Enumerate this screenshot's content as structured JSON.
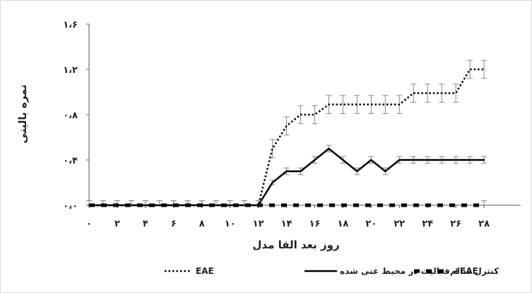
{
  "chart_data": {
    "type": "line",
    "title": "",
    "xlabel": "روز بعد القا مدل",
    "ylabel": "نمره بالینی",
    "xlim": [
      0,
      30.6
    ],
    "ylim": [
      0,
      1.6
    ],
    "x_ticks": [
      0,
      2,
      4,
      6,
      8,
      10,
      12,
      14,
      16,
      18,
      20,
      22,
      24,
      26,
      28
    ],
    "x_tick_labels": [
      "۰",
      "۲",
      "۴",
      "۶",
      "۸",
      "۱۰",
      "۱۲",
      "۱۴",
      "۱۶",
      "۱۸",
      "۲۰",
      "۲۲",
      "۲۴",
      "۲۶",
      "۲۸"
    ],
    "y_ticks": [
      0,
      0.4,
      0.8,
      1.2,
      1.6
    ],
    "y_tick_labels": [
      "۰،۰",
      "۰،۴",
      "۰،۸",
      "۱،۲",
      "۱،۶"
    ],
    "legend_position": "bottom",
    "x": [
      0,
      1,
      2,
      3,
      4,
      5,
      6,
      7,
      8,
      9,
      10,
      11,
      12,
      13,
      14,
      15,
      16,
      17,
      18,
      19,
      20,
      21,
      22,
      23,
      24,
      25,
      26,
      27,
      28
    ],
    "series": [
      {
        "name": "EAE",
        "style": "dotted",
        "color": "#000000",
        "values": [
          0,
          0,
          0,
          0,
          0,
          0,
          0,
          0,
          0,
          0,
          0,
          0,
          0,
          0.5,
          0.7,
          0.8,
          0.8,
          0.89,
          0.89,
          0.89,
          0.89,
          0.89,
          0.89,
          0.99,
          0.99,
          0.99,
          0.99,
          1.2,
          1.2
        ],
        "errors": [
          0.04,
          0.04,
          0.04,
          0.04,
          0.04,
          0.04,
          0.04,
          0.04,
          0.04,
          0.04,
          0.04,
          0.04,
          0.04,
          0.08,
          0.08,
          0.08,
          0.08,
          0.08,
          0.08,
          0.08,
          0.08,
          0.08,
          0.08,
          0.08,
          0.08,
          0.08,
          0.08,
          0.08,
          0.08
        ]
      },
      {
        "name": "فعالیت در محیط غنی شده +EAE",
        "style": "solid",
        "color": "#000000",
        "values": [
          0,
          0,
          0,
          0,
          0,
          0,
          0,
          0,
          0,
          0,
          0,
          0,
          0,
          0.2,
          0.3,
          0.3,
          0.4,
          0.5,
          0.4,
          0.3,
          0.4,
          0.3,
          0.4,
          0.4,
          0.4,
          0.4,
          0.4,
          0.4,
          0.4
        ],
        "errors": [
          0,
          0,
          0,
          0,
          0,
          0,
          0,
          0,
          0,
          0,
          0,
          0,
          0,
          0.02,
          0.03,
          0.03,
          0.03,
          0.03,
          0.03,
          0.03,
          0.03,
          0.03,
          0.03,
          0.03,
          0.03,
          0.03,
          0.03,
          0.03,
          0.03
        ]
      },
      {
        "name": "کنترل سالم",
        "style": "dashed",
        "color": "#000000",
        "values": [
          0,
          0,
          0,
          0,
          0,
          0,
          0,
          0,
          0,
          0,
          0,
          0,
          0,
          0,
          0,
          0,
          0,
          0,
          0,
          0,
          0,
          0,
          0,
          0,
          0,
          0,
          0,
          0,
          0
        ],
        "errors": [
          0.04,
          0.04,
          0.04,
          0.04,
          0.04,
          0.04,
          0.04,
          0.04,
          0.04,
          0.04,
          0.04,
          0.04,
          0.04,
          0,
          0,
          0,
          0,
          0,
          0,
          0,
          0,
          0,
          0,
          0,
          0,
          0,
          0,
          0,
          0.04
        ]
      }
    ],
    "legend": [
      {
        "label": "EAE",
        "style": "dotted"
      },
      {
        "label": "فعالیت در محیط غنی شده +EAE",
        "style": "solid"
      },
      {
        "label": "کنترل سالم",
        "style": "dashed"
      }
    ]
  }
}
